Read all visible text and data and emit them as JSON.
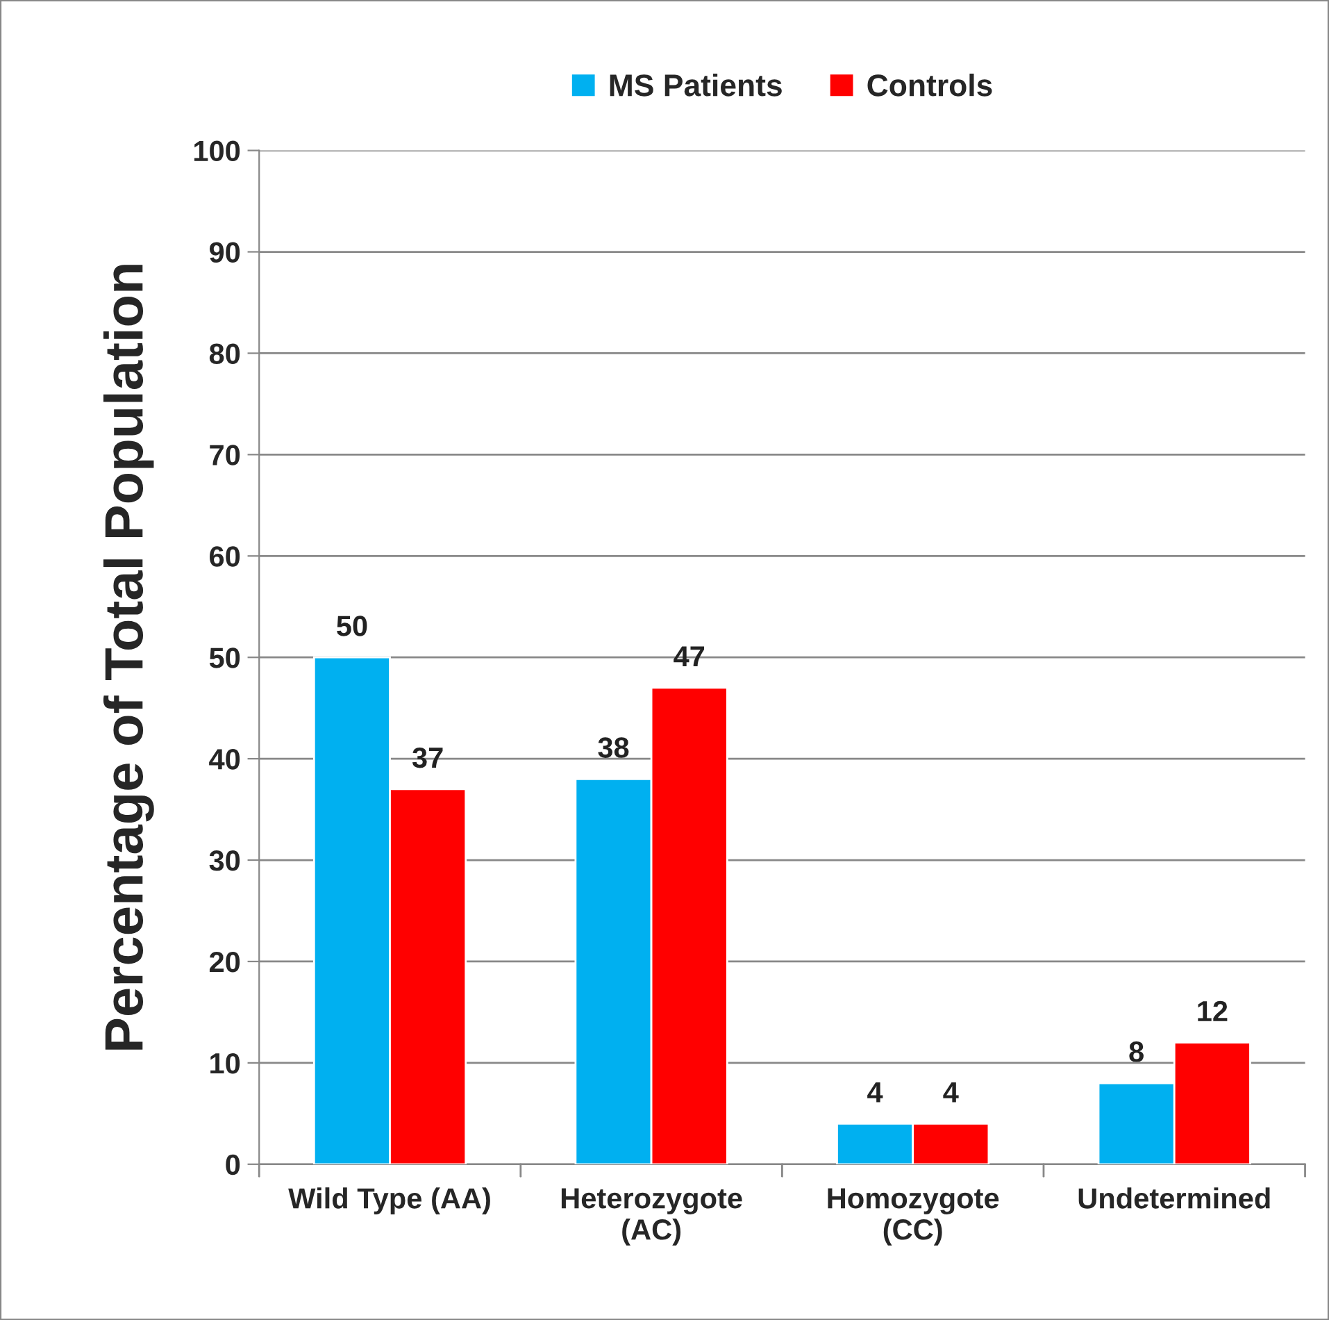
{
  "chart_data": {
    "type": "bar",
    "ylabel": "Percentage of Total Population",
    "categories": [
      "Wild Type (AA)",
      "Heterozygote\n(AC)",
      "Homozygote\n(CC)",
      "Undetermined"
    ],
    "series": [
      {
        "name": "MS Patients",
        "color": "#00b0f0",
        "values": [
          50,
          38,
          4,
          8
        ]
      },
      {
        "name": "Controls",
        "color": "#ff0000",
        "values": [
          37,
          47,
          4,
          12
        ]
      }
    ],
    "ylim": [
      0,
      100
    ],
    "yticks": [
      0,
      10,
      20,
      30,
      40,
      50,
      60,
      70,
      80,
      90,
      100
    ],
    "grid": "y",
    "legend": "top",
    "data_labels": true
  }
}
